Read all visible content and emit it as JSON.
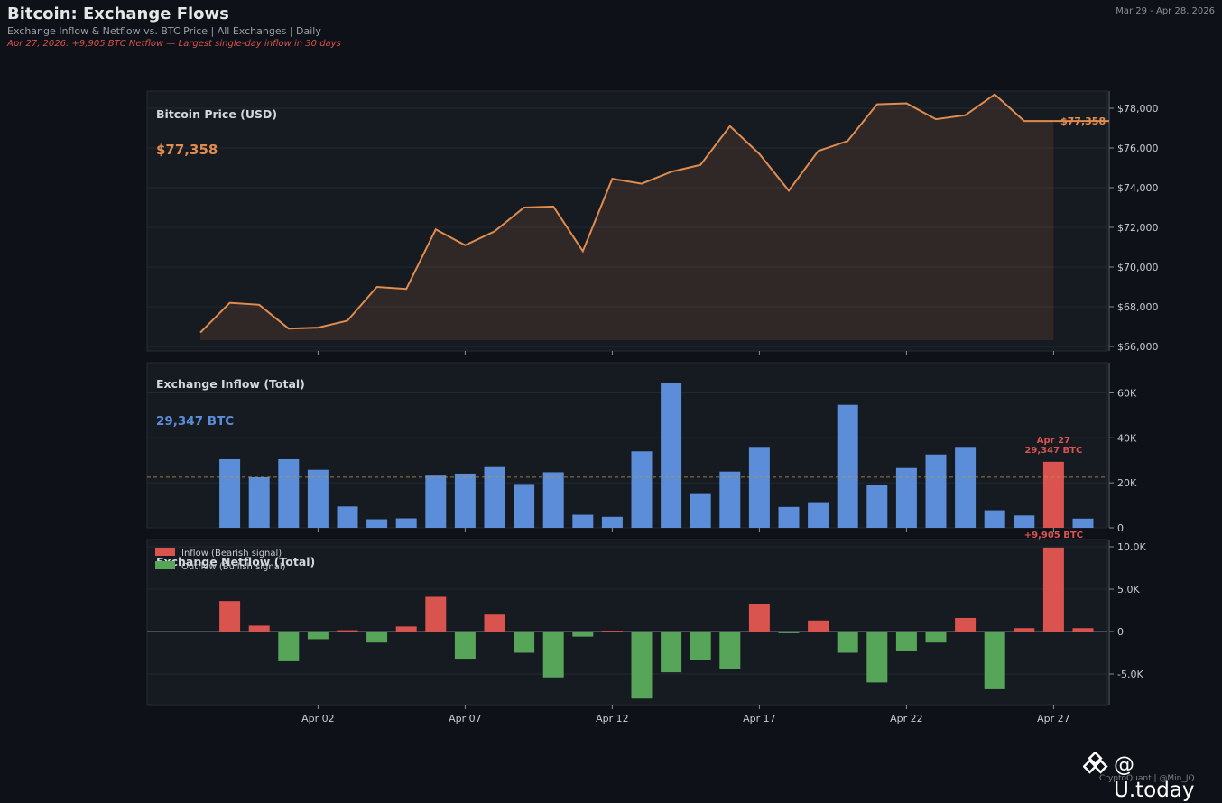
{
  "header": {
    "title": "Bitcoin: Exchange Flows",
    "subtitle": "Exchange Inflow & Netflow vs. BTC Price  |  All Exchanges  |  Daily",
    "note": "Apr 27, 2026: +9,905 BTC Netflow — Largest single-day inflow in 30 days",
    "date_range": "Mar 29 - Apr 28, 2026"
  },
  "watermark": {
    "text": "@ U.today",
    "sub": "CryptoQuant  |  @Min_JQ"
  },
  "colors": {
    "background": "#0e1117",
    "panel": "#161a21",
    "price_line": "#e08c4f",
    "inflow_bar": "#5b8dd9",
    "inflow_highlight": "#d9534f",
    "netflow_positive": "#d9534f",
    "netflow_negative": "#57a559",
    "average_line": "#b8944a"
  },
  "chart_data": [
    {
      "type": "line",
      "panel_title": "Bitcoin Price (USD)",
      "current_value_label": "$77,358",
      "end_label": "$77,358",
      "x": [
        "Mar 29",
        "Mar 30",
        "Mar 31",
        "Apr 01",
        "Apr 02",
        "Apr 03",
        "Apr 04",
        "Apr 05",
        "Apr 06",
        "Apr 07",
        "Apr 08",
        "Apr 09",
        "Apr 10",
        "Apr 11",
        "Apr 12",
        "Apr 13",
        "Apr 14",
        "Apr 15",
        "Apr 16",
        "Apr 17",
        "Apr 18",
        "Apr 19",
        "Apr 20",
        "Apr 21",
        "Apr 22",
        "Apr 23",
        "Apr 24",
        "Apr 25",
        "Apr 26",
        "Apr 27",
        "Apr 28"
      ],
      "values": [
        66700,
        68200,
        68100,
        66900,
        66950,
        67300,
        69000,
        68900,
        71900,
        71100,
        71800,
        73000,
        73050,
        70800,
        74450,
        74200,
        74800,
        75150,
        77100,
        75700,
        73850,
        75850,
        76350,
        78200,
        78250,
        77450,
        77650,
        78700,
        77358,
        77358,
        null
      ],
      "ylim": [
        66000,
        79000
      ],
      "yticks": [
        66000,
        68000,
        70000,
        72000,
        74000,
        76000,
        78000
      ],
      "ytick_labels": [
        "$66,000",
        "$68,000",
        "$70,000",
        "$72,000",
        "$74,000",
        "$76,000",
        "$78,000"
      ],
      "grid": true
    },
    {
      "type": "bar",
      "panel_title": "Exchange Inflow (Total)",
      "current_value_label": "29,347 BTC",
      "x": [
        "Mar 29",
        "Mar 30",
        "Mar 31",
        "Apr 01",
        "Apr 02",
        "Apr 03",
        "Apr 04",
        "Apr 05",
        "Apr 06",
        "Apr 07",
        "Apr 08",
        "Apr 09",
        "Apr 10",
        "Apr 11",
        "Apr 12",
        "Apr 13",
        "Apr 14",
        "Apr 15",
        "Apr 16",
        "Apr 17",
        "Apr 18",
        "Apr 19",
        "Apr 20",
        "Apr 21",
        "Apr 22",
        "Apr 23",
        "Apr 24",
        "Apr 25",
        "Apr 26",
        "Apr 27",
        "Apr 28"
      ],
      "values": [
        null,
        30500,
        22500,
        30500,
        25800,
        9500,
        3800,
        4200,
        23200,
        24100,
        27000,
        19500,
        24700,
        5800,
        4900,
        34000,
        64500,
        15400,
        25000,
        36000,
        9300,
        11400,
        54700,
        19200,
        26600,
        32600,
        36000,
        7800,
        5500,
        29347,
        4100
      ],
      "average": 22500,
      "highlight": {
        "x": "Apr 27",
        "label_date": "Apr 27",
        "label_value": "29,347 BTC"
      },
      "ylim": [
        0,
        65000
      ],
      "yticks": [
        0,
        20000,
        40000,
        60000
      ],
      "ytick_labels": [
        "0",
        "20K",
        "40K",
        "60K"
      ],
      "grid": true
    },
    {
      "type": "bar",
      "panel_title": "Exchange Netflow (Total)",
      "legend": {
        "placement": "top-left",
        "entries": [
          "Inflow (Bearish signal)",
          "Outflow (Bullish signal)"
        ]
      },
      "x": [
        "Mar 29",
        "Mar 30",
        "Mar 31",
        "Apr 01",
        "Apr 02",
        "Apr 03",
        "Apr 04",
        "Apr 05",
        "Apr 06",
        "Apr 07",
        "Apr 08",
        "Apr 09",
        "Apr 10",
        "Apr 11",
        "Apr 12",
        "Apr 13",
        "Apr 14",
        "Apr 15",
        "Apr 16",
        "Apr 17",
        "Apr 18",
        "Apr 19",
        "Apr 20",
        "Apr 21",
        "Apr 22",
        "Apr 23",
        "Apr 24",
        "Apr 25",
        "Apr 26",
        "Apr 27",
        "Apr 28"
      ],
      "values": [
        null,
        3600,
        700,
        -3500,
        -900,
        150,
        -1300,
        600,
        4100,
        -3200,
        2000,
        -2500,
        -5400,
        -600,
        100,
        -7900,
        -4800,
        -3300,
        -4400,
        3300,
        -200,
        1300,
        -2500,
        -6000,
        -2300,
        -1300,
        1600,
        -6800,
        400,
        9905,
        400
      ],
      "highlight": {
        "x": "Apr 27",
        "label": "+9,905 BTC"
      },
      "ylim": [
        -8700,
        10800
      ],
      "yticks": [
        -5000,
        0,
        5000,
        10000
      ],
      "ytick_labels": [
        "-5.0K",
        "0",
        "5.0K",
        "10.0K"
      ],
      "xtick_labels": [
        "Apr 02",
        "Apr 07",
        "Apr 12",
        "Apr 17",
        "Apr 22",
        "Apr 27"
      ],
      "grid": true
    }
  ]
}
